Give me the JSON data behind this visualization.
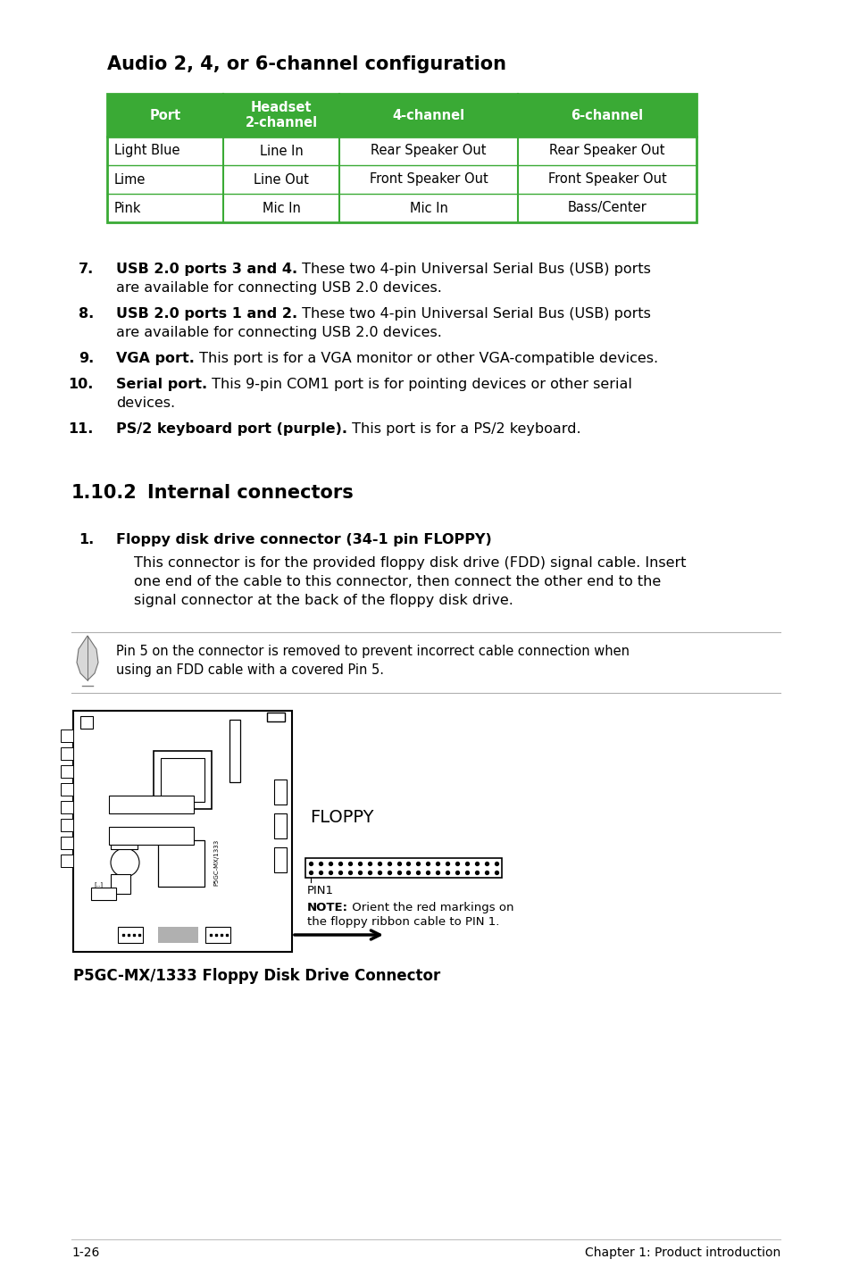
{
  "page_bg": "#ffffff",
  "title_audio": "Audio 2, 4, or 6-channel configuration",
  "table_header_bg": "#3aaa35",
  "table_header_text": "#ffffff",
  "table_border": "#3aaa35",
  "table_headers": [
    "Port",
    "Headset\n2-channel",
    "4-channel",
    "6-channel"
  ],
  "table_rows": [
    [
      "Light Blue",
      "Line In",
      "Rear Speaker Out",
      "Rear Speaker Out"
    ],
    [
      "Lime",
      "Line Out",
      "Front Speaker Out",
      "Front Speaker Out"
    ],
    [
      "Pink",
      "Mic In",
      "Mic In",
      "Bass/Center"
    ]
  ],
  "items": [
    {
      "num": "7.",
      "bold": "USB 2.0 ports 3 and 4.",
      "text": " These two 4-pin Universal Serial Bus (USB) ports",
      "text2": "are available for connecting USB 2.0 devices."
    },
    {
      "num": "8.",
      "bold": "USB 2.0 ports 1 and 2.",
      "text": " These two 4-pin Universal Serial Bus (USB) ports",
      "text2": "are available for connecting USB 2.0 devices."
    },
    {
      "num": "9.",
      "bold": "VGA port.",
      "text": " This port is for a VGA monitor or other VGA-compatible devices.",
      "text2": ""
    },
    {
      "num": "10.",
      "bold": "Serial port.",
      "text": " This 9-pin COM1 port is for pointing devices or other serial",
      "text2": "devices."
    },
    {
      "num": "11.",
      "bold": "PS/2 keyboard port (purple).",
      "text": " This port is for a PS/2 keyboard.",
      "text2": ""
    }
  ],
  "section_title": "1.10.2",
  "section_title2": "Internal connectors",
  "floppy_num": "1.",
  "floppy_title": "Floppy disk drive connector (34-1 pin FLOPPY)",
  "floppy_desc_lines": [
    "This connector is for the provided floppy disk drive (FDD) signal cable. Insert",
    "one end of the cable to this connector, then connect the other end to the",
    "signal connector at the back of the floppy disk drive."
  ],
  "note_line1": "Pin 5 on the connector is removed to prevent incorrect cable connection when",
  "note_line2": "using an FDD cable with a covered Pin 5.",
  "floppy_label": "FLOPPY",
  "pin1_label": "PIN1",
  "note_bold": "NOTE:",
  "note_orient1": " Orient the red markings on",
  "note_orient2": "the floppy ribbon cable to PIN 1.",
  "diagram_caption": "P5GC-MX/1333 Floppy Disk Drive Connector",
  "footer_left": "1-26",
  "footer_right": "Chapter 1: Product introduction"
}
